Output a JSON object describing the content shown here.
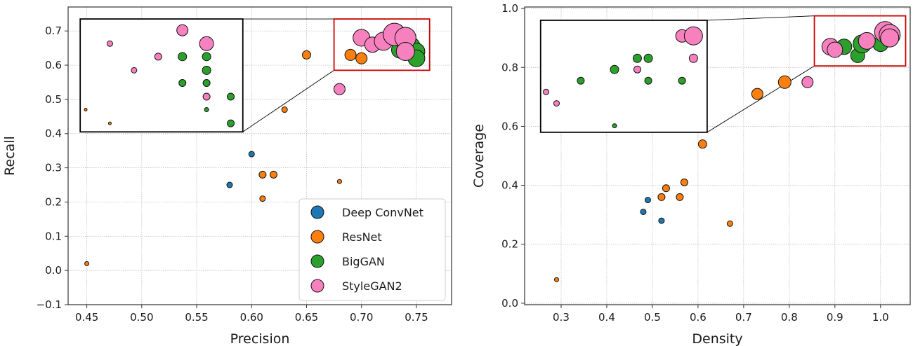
{
  "chart_data": [
    {
      "type": "scatter",
      "xlabel": "Precision",
      "ylabel": "Recall",
      "xlim": [
        0.433,
        0.782
      ],
      "ylim": [
        -0.1,
        0.77
      ],
      "xticks": [
        "0.45",
        "0.50",
        "0.55",
        "0.60",
        "0.65",
        "0.70",
        "0.75"
      ],
      "yticks": [
        "−0.1",
        "0.0",
        "0.1",
        "0.2",
        "0.3",
        "0.4",
        "0.5",
        "0.6",
        "0.7"
      ],
      "xtick_values": [
        0.45,
        0.5,
        0.55,
        0.6,
        0.65,
        0.7,
        0.75
      ],
      "ytick_values": [
        -0.1,
        0.0,
        0.1,
        0.2,
        0.3,
        0.4,
        0.5,
        0.6,
        0.7
      ],
      "grid": true,
      "legend_position": "bottom-right",
      "series": [
        {
          "name": "Deep ConvNet",
          "color": "#1f77b4",
          "points": [
            {
              "x": 0.58,
              "y": 0.25,
              "s": 4
            },
            {
              "x": 0.6,
              "y": 0.34,
              "s": 4
            }
          ]
        },
        {
          "name": "ResNet",
          "color": "#ff7f0e",
          "points": [
            {
              "x": 0.45,
              "y": 0.02,
              "s": 3
            },
            {
              "x": 0.61,
              "y": 0.21,
              "s": 4
            },
            {
              "x": 0.61,
              "y": 0.28,
              "s": 5
            },
            {
              "x": 0.62,
              "y": 0.28,
              "s": 5
            },
            {
              "x": 0.63,
              "y": 0.47,
              "s": 4
            },
            {
              "x": 0.65,
              "y": 0.63,
              "s": 6
            },
            {
              "x": 0.68,
              "y": 0.26,
              "s": 3
            },
            {
              "x": 0.69,
              "y": 0.63,
              "s": 8
            },
            {
              "x": 0.7,
              "y": 0.62,
              "s": 8
            }
          ]
        },
        {
          "name": "BigGAN",
          "color": "#2ca02c",
          "points": [
            {
              "x": 0.735,
              "y": 0.645,
              "s": 12
            },
            {
              "x": 0.74,
              "y": 0.66,
              "s": 12
            },
            {
              "x": 0.745,
              "y": 0.655,
              "s": 13
            },
            {
              "x": 0.75,
              "y": 0.64,
              "s": 12
            },
            {
              "x": 0.75,
              "y": 0.62,
              "s": 12
            }
          ]
        },
        {
          "name": "StyleGAN2",
          "color": "#f781bf",
          "points": [
            {
              "x": 0.68,
              "y": 0.53,
              "s": 8
            },
            {
              "x": 0.7,
              "y": 0.68,
              "s": 12
            },
            {
              "x": 0.71,
              "y": 0.66,
              "s": 11
            },
            {
              "x": 0.72,
              "y": 0.67,
              "s": 13
            },
            {
              "x": 0.73,
              "y": 0.69,
              "s": 16
            },
            {
              "x": 0.74,
              "y": 0.68,
              "s": 15
            },
            {
              "x": 0.74,
              "y": 0.64,
              "s": 13
            }
          ]
        }
      ],
      "inset_region": {
        "x": [
          0.675,
          0.762
        ],
        "y": [
          0.585,
          0.735
        ]
      },
      "inset_points": [
        {
          "x": 0.449,
          "y": 0.47,
          "s": 2,
          "series": "ResNet"
        },
        {
          "x": 0.471,
          "y": 0.43,
          "s": 2,
          "series": "ResNet"
        },
        {
          "x": 0.471,
          "y": 0.663,
          "s": 4,
          "series": "StyleGAN2"
        },
        {
          "x": 0.493,
          "y": 0.585,
          "s": 4,
          "series": "StyleGAN2"
        },
        {
          "x": 0.515,
          "y": 0.625,
          "s": 5,
          "series": "StyleGAN2"
        },
        {
          "x": 0.537,
          "y": 0.702,
          "s": 8,
          "series": "StyleGAN2"
        },
        {
          "x": 0.537,
          "y": 0.625,
          "s": 6,
          "series": "BigGAN"
        },
        {
          "x": 0.537,
          "y": 0.548,
          "s": 5,
          "series": "BigGAN"
        },
        {
          "x": 0.559,
          "y": 0.663,
          "s": 10,
          "series": "StyleGAN2"
        },
        {
          "x": 0.559,
          "y": 0.625,
          "s": 6,
          "series": "BigGAN"
        },
        {
          "x": 0.559,
          "y": 0.585,
          "s": 6,
          "series": "BigGAN"
        },
        {
          "x": 0.559,
          "y": 0.548,
          "s": 5,
          "series": "BigGAN"
        },
        {
          "x": 0.559,
          "y": 0.508,
          "s": 5,
          "series": "StyleGAN2"
        },
        {
          "x": 0.559,
          "y": 0.47,
          "s": 3,
          "series": "BigGAN"
        },
        {
          "x": 0.581,
          "y": 0.508,
          "s": 5,
          "series": "BigGAN"
        },
        {
          "x": 0.581,
          "y": 0.43,
          "s": 5,
          "series": "BigGAN"
        }
      ],
      "inset_box": {
        "x": [
          0.444,
          0.592
        ],
        "y": [
          0.405,
          0.735
        ]
      }
    },
    {
      "type": "scatter",
      "xlabel": "Density",
      "ylabel": "Coverage",
      "xlim": [
        0.22,
        1.065
      ],
      "ylim": [
        -0.005,
        1.005
      ],
      "xticks": [
        "0.3",
        "0.4",
        "0.5",
        "0.6",
        "0.7",
        "0.8",
        "0.9",
        "1.0"
      ],
      "yticks": [
        "0.0",
        "0.2",
        "0.4",
        "0.6",
        "0.8",
        "1.0"
      ],
      "xtick_values": [
        0.3,
        0.4,
        0.5,
        0.6,
        0.7,
        0.8,
        0.9,
        1.0
      ],
      "ytick_values": [
        0.0,
        0.2,
        0.4,
        0.6,
        0.8,
        1.0
      ],
      "grid": true,
      "series": [
        {
          "name": "Deep ConvNet",
          "color": "#1f77b4",
          "points": [
            {
              "x": 0.48,
              "y": 0.31,
              "s": 4
            },
            {
              "x": 0.49,
              "y": 0.35,
              "s": 4
            },
            {
              "x": 0.52,
              "y": 0.28,
              "s": 4
            }
          ]
        },
        {
          "name": "ResNet",
          "color": "#ff7f0e",
          "points": [
            {
              "x": 0.29,
              "y": 0.08,
              "s": 3
            },
            {
              "x": 0.52,
              "y": 0.36,
              "s": 5
            },
            {
              "x": 0.53,
              "y": 0.39,
              "s": 5
            },
            {
              "x": 0.56,
              "y": 0.36,
              "s": 5
            },
            {
              "x": 0.57,
              "y": 0.41,
              "s": 5
            },
            {
              "x": 0.61,
              "y": 0.54,
              "s": 6
            },
            {
              "x": 0.67,
              "y": 0.27,
              "s": 4
            },
            {
              "x": 0.73,
              "y": 0.71,
              "s": 8
            },
            {
              "x": 0.79,
              "y": 0.75,
              "s": 9
            }
          ]
        },
        {
          "name": "BigGAN",
          "color": "#2ca02c",
          "points": [
            {
              "x": 0.92,
              "y": 0.87,
              "s": 11
            },
            {
              "x": 0.95,
              "y": 0.84,
              "s": 10
            },
            {
              "x": 0.96,
              "y": 0.88,
              "s": 13
            },
            {
              "x": 0.97,
              "y": 0.89,
              "s": 11
            },
            {
              "x": 1.0,
              "y": 0.88,
              "s": 11
            }
          ]
        },
        {
          "name": "StyleGAN2",
          "color": "#f781bf",
          "points": [
            {
              "x": 0.84,
              "y": 0.75,
              "s": 8
            },
            {
              "x": 0.89,
              "y": 0.87,
              "s": 12
            },
            {
              "x": 0.9,
              "y": 0.86,
              "s": 11
            },
            {
              "x": 0.97,
              "y": 0.89,
              "s": 12
            },
            {
              "x": 1.01,
              "y": 0.92,
              "s": 15
            },
            {
              "x": 1.02,
              "y": 0.91,
              "s": 15
            },
            {
              "x": 1.02,
              "y": 0.9,
              "s": 13
            }
          ]
        }
      ],
      "inset_region": {
        "x": [
          0.855,
          1.055
        ],
        "y": [
          0.805,
          0.975
        ]
      },
      "inset_points": [
        {
          "x": 0.267,
          "y": 0.717,
          "s": 4,
          "series": "StyleGAN2"
        },
        {
          "x": 0.29,
          "y": 0.678,
          "s": 4,
          "series": "StyleGAN2"
        },
        {
          "x": 0.343,
          "y": 0.755,
          "s": 5,
          "series": "BigGAN"
        },
        {
          "x": 0.417,
          "y": 0.793,
          "s": 6,
          "series": "BigGAN"
        },
        {
          "x": 0.417,
          "y": 0.602,
          "s": 3,
          "series": "BigGAN"
        },
        {
          "x": 0.467,
          "y": 0.831,
          "s": 6,
          "series": "BigGAN"
        },
        {
          "x": 0.467,
          "y": 0.793,
          "s": 5,
          "series": "StyleGAN2"
        },
        {
          "x": 0.491,
          "y": 0.831,
          "s": 6,
          "series": "BigGAN"
        },
        {
          "x": 0.491,
          "y": 0.755,
          "s": 5,
          "series": "BigGAN"
        },
        {
          "x": 0.565,
          "y": 0.907,
          "s": 9,
          "series": "StyleGAN2"
        },
        {
          "x": 0.565,
          "y": 0.755,
          "s": 5,
          "series": "BigGAN"
        },
        {
          "x": 0.59,
          "y": 0.907,
          "s": 13,
          "series": "StyleGAN2"
        },
        {
          "x": 0.59,
          "y": 0.831,
          "s": 6,
          "series": "StyleGAN2"
        }
      ],
      "inset_box": {
        "x": [
          0.255,
          0.62
        ],
        "y": [
          0.58,
          0.96
        ]
      }
    }
  ],
  "legend": {
    "items": [
      {
        "label": "Deep ConvNet",
        "color": "#1f77b4"
      },
      {
        "label": "ResNet",
        "color": "#ff7f0e"
      },
      {
        "label": "BigGAN",
        "color": "#2ca02c"
      },
      {
        "label": "StyleGAN2",
        "color": "#f781bf"
      }
    ]
  }
}
